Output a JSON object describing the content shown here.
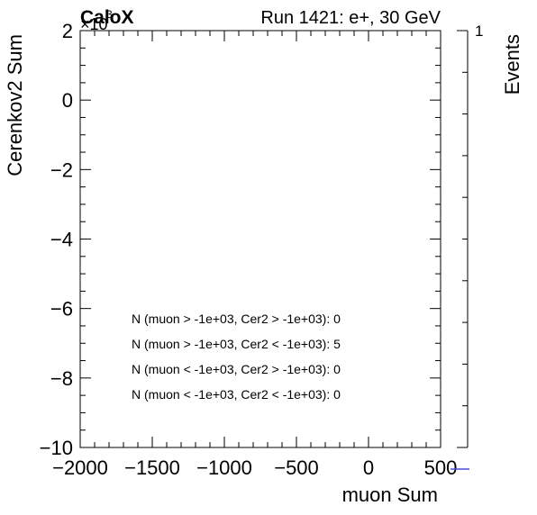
{
  "header": {
    "logo_text": "CaloX",
    "run_info": "Run 1421: e+, 30 GeV"
  },
  "chart_data": {
    "type": "heatmap",
    "title": "",
    "xlabel": "muon Sum",
    "ylabel": "Cerenkov2 Sum",
    "zlabel": "Events",
    "xlim": [
      -2000,
      500
    ],
    "ylim": [
      -10000,
      2000
    ],
    "y_exponent_label": "×10",
    "y_exponent_power": "3",
    "x_ticks": [
      {
        "value": -2000,
        "label": "−2000"
      },
      {
        "value": -1500,
        "label": "−1500"
      },
      {
        "value": -1000,
        "label": "−1000"
      },
      {
        "value": -500,
        "label": "−500"
      },
      {
        "value": 0,
        "label": "0"
      },
      {
        "value": 500,
        "label": "500"
      }
    ],
    "y_ticks": [
      {
        "value": 2000,
        "label": "2"
      },
      {
        "value": 0,
        "label": "0"
      },
      {
        "value": -2000,
        "label": "−2"
      },
      {
        "value": -4000,
        "label": "−4"
      },
      {
        "value": -6000,
        "label": "−6"
      },
      {
        "value": -8000,
        "label": "−8"
      },
      {
        "value": -10000,
        "label": "−10"
      }
    ],
    "z_ticks": [
      {
        "value": 1,
        "label": "1"
      }
    ],
    "bins": [],
    "annotations": [
      "N (muon > -1e+03, Cer2 > -1e+03): 0",
      "N (muon > -1e+03, Cer2 < -1e+03): 5",
      "N (muon < -1e+03, Cer2 > -1e+03): 0",
      "N (muon < -1e+03, Cer2 < -1e+03): 0"
    ],
    "palette_color": "#4b4bd6",
    "grid": false
  }
}
